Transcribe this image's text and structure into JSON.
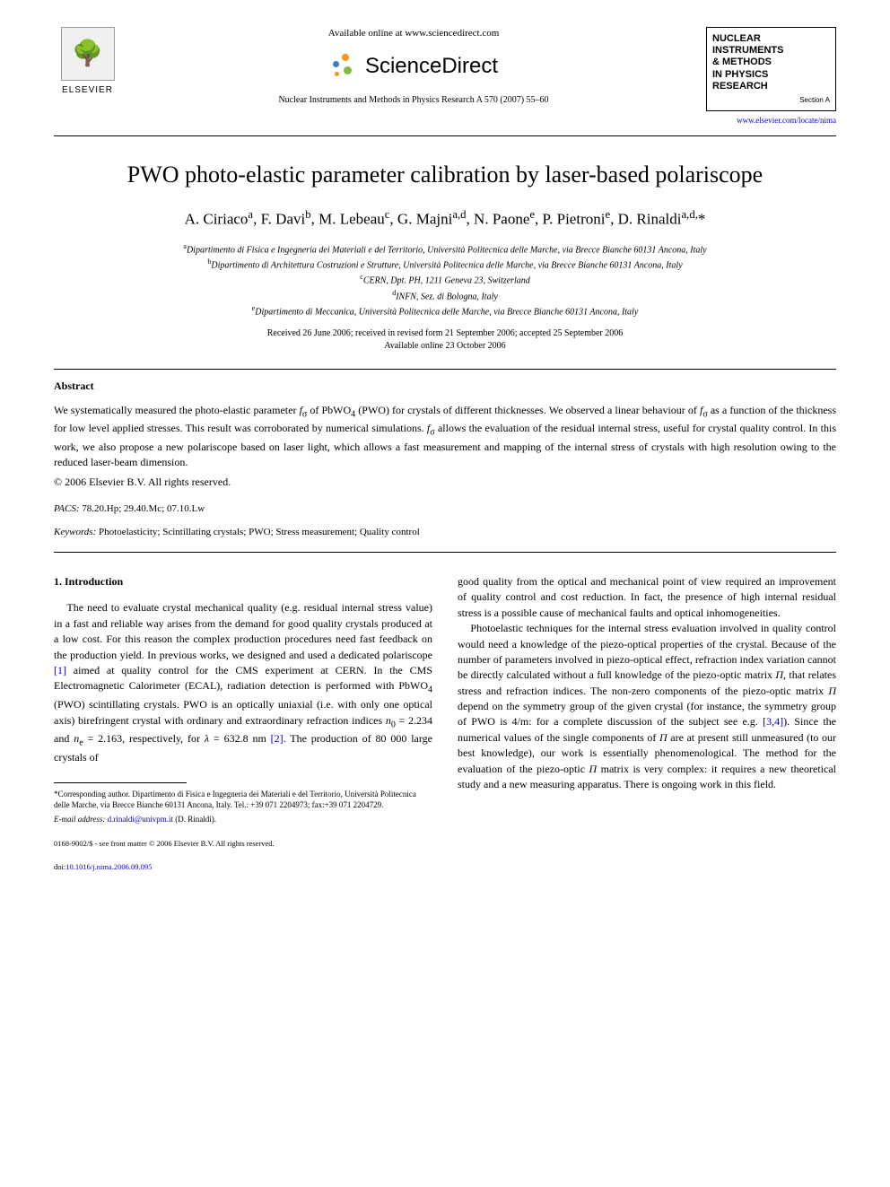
{
  "header": {
    "available_online": "Available online at www.sciencedirect.com",
    "sciencedirect_text": "ScienceDirect",
    "elsevier_label": "ELSEVIER",
    "journal_ref": "Nuclear Instruments and Methods in Physics Research A 570 (2007) 55–60",
    "journal_box": {
      "line1": "NUCLEAR",
      "line2": "INSTRUMENTS",
      "line3": "& METHODS",
      "line4": "IN PHYSICS",
      "line5": "RESEARCH",
      "section": "Section A"
    },
    "journal_url": "www.elsevier.com/locate/nima"
  },
  "title": "PWO photo-elastic parameter calibration by laser-based polariscope",
  "authors_html": "A. Ciriaco<sup>a</sup>, F. Davi<sup>b</sup>, M. Lebeau<sup>c</sup>, G. Majni<sup>a,d</sup>, N. Paone<sup>e</sup>, P. Pietroni<sup>e</sup>, D. Rinaldi<sup>a,d,</sup>*",
  "affiliations": {
    "a": "Dipartimento di Fisica e Ingegneria dei Materiali e del Territorio, Università Politecnica delle Marche, via Brecce Bianche 60131 Ancona, Italy",
    "b": "Dipartimento di Architettura Costruzioni e Strutture, Università Politecnica delle Marche, via Brecce Bianche 60131 Ancona, Italy",
    "c": "CERN, Dpt. PH, 1211 Geneva 23, Switzerland",
    "d": "INFN, Sez. di Bologna, Italy",
    "e": "Dipartimento di Meccanica, Università Politecnica delle Marche, via Brecce Bianche 60131 Ancona, Italy"
  },
  "dates": {
    "line1": "Received 26 June 2006; received in revised form 21 September 2006; accepted 25 September 2006",
    "line2": "Available online 23 October 2006"
  },
  "abstract": {
    "heading": "Abstract",
    "text": "We systematically measured the photo-elastic parameter f_σ of PbWO₄ (PWO) for crystals of different thicknesses. We observed a linear behaviour of f_σ as a function of the thickness for low level applied stresses. This result was corroborated by numerical simulations. f_σ allows the evaluation of the residual internal stress, useful for crystal quality control. In this work, we also propose a new polariscope based on laser light, which allows a fast measurement and mapping of the internal stress of crystals with high resolution owing to the reduced laser-beam dimension.",
    "copyright": "© 2006 Elsevier B.V. All rights reserved."
  },
  "pacs": {
    "label": "PACS:",
    "codes": "78.20.Hp; 29.40.Mc; 07.10.Lw"
  },
  "keywords": {
    "label": "Keywords:",
    "list": "Photoelasticity; Scintillating crystals; PWO; Stress measurement; Quality control"
  },
  "section1": {
    "heading": "1. Introduction",
    "col1_para": "The need to evaluate crystal mechanical quality (e.g. residual internal stress value) in a fast and reliable way arises from the demand for good quality crystals produced at a low cost. For this reason the complex production procedures need fast feedback on the production yield. In previous works, we designed and used a dedicated polariscope [1] aimed at quality control for the CMS experiment at CERN. In the CMS Electromagnetic Calorimeter (ECAL), radiation detection is performed with PbWO₄ (PWO) scintillating crystals. PWO is an optically uniaxial (i.e. with only one optical axis) birefringent crystal with ordinary and extraordinary refraction indices n₀ = 2.234 and nₑ = 2.163, respectively, for λ = 632.8 nm [2]. The production of 80 000 large crystals of",
    "col2_para1": "good quality from the optical and mechanical point of view required an improvement of quality control and cost reduction. In fact, the presence of high internal residual stress is a possible cause of mechanical faults and optical inhomogeneities.",
    "col2_para2": "Photoelastic techniques for the internal stress evaluation involved in quality control would need a knowledge of the piezo-optical properties of the crystal. Because of the number of parameters involved in piezo-optical effect, refraction index variation cannot be directly calculated without a full knowledge of the piezo-optic matrix Π, that relates stress and refraction indices. The non-zero components of the piezo-optic matrix Π depend on the symmetry group of the given crystal (for instance, the symmetry group of PWO is 4/m: for a complete discussion of the subject see e.g. [3,4]). Since the numerical values of the single components of Π are at present still unmeasured (to our best knowledge), our work is essentially phenomenological. The method for the evaluation of the piezo-optic Π matrix is very complex: it requires a new theoretical study and a new measuring apparatus. There is ongoing work in this field."
  },
  "footnote": {
    "corresponding": "*Corresponding author. Dipartimento di Fisica e Ingegneria dei Materiali e del Territorio, Università Politecnica delle Marche, via Brecce Bianche 60131 Ancona, Italy. Tel.: +39 071 2204973; fax:+39 071 2204729.",
    "email_label": "E-mail address:",
    "email": "d.rinaldi@univpm.it",
    "email_author": "(D. Rinaldi)."
  },
  "bottom": {
    "issn_line": "0168-9002/$ - see front matter © 2006 Elsevier B.V. All rights reserved.",
    "doi_label": "doi:",
    "doi": "10.1016/j.nima.2006.09.095"
  },
  "colors": {
    "link": "#0000cc",
    "text": "#000000",
    "bg": "#ffffff",
    "sd_orange": "#f7941e",
    "sd_blue": "#3b7bbf",
    "sd_green": "#7fba42"
  }
}
